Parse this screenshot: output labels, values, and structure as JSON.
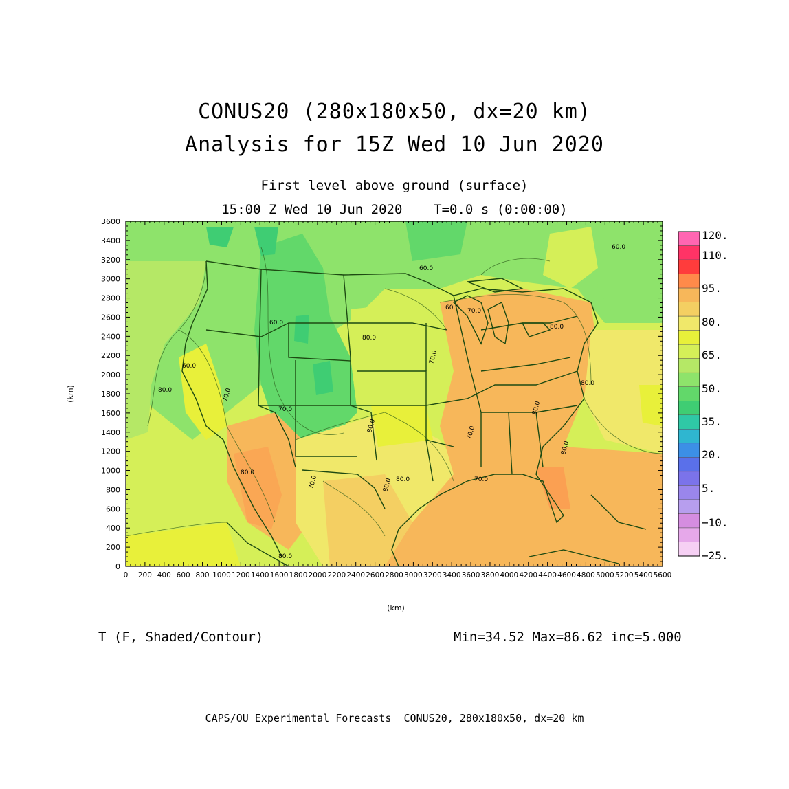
{
  "header": {
    "title_line1": "CONUS20 (280x180x50, dx=20 km)",
    "title_line2": "Analysis for 15Z Wed 10 Jun 2020",
    "subtitle_level": "First level above ground (surface)",
    "subtitle_time": "15:00 Z Wed 10 Jun 2020    T=0.0 s (0:00:00)"
  },
  "axes": {
    "x_label": "(km)",
    "y_label": "(km)",
    "x_ticks": [
      "0",
      "200",
      "400",
      "600",
      "800",
      "1000",
      "1200",
      "1400",
      "1600",
      "1800",
      "2000",
      "2200",
      "2400",
      "2600",
      "2800",
      "3000",
      "3200",
      "3400",
      "3600",
      "3800",
      "4000",
      "4200",
      "4400",
      "4600",
      "4800",
      "5000",
      "5200",
      "5400",
      "5600"
    ],
    "y_ticks": [
      "0",
      "200",
      "400",
      "600",
      "800",
      "1000",
      "1200",
      "1400",
      "1600",
      "1800",
      "2000",
      "2200",
      "2400",
      "2600",
      "2800",
      "3000",
      "3200",
      "3400",
      "3600"
    ]
  },
  "colorbar": {
    "labels": [
      "120.",
      "110.",
      "95.",
      "80.",
      "65.",
      "50.",
      "35.",
      "20.",
      "5.",
      "−10.",
      "−25."
    ],
    "colors": [
      "#ff66b2",
      "#ff3366",
      "#ff3c3c",
      "#ff8a4a",
      "#f7b75a",
      "#f4cf62",
      "#f0e86a",
      "#e8f03a",
      "#d5ef58",
      "#b5e866",
      "#8ee36b",
      "#62d86a",
      "#3fcd73",
      "#2fc8a6",
      "#2fb6d0",
      "#3c8fe6",
      "#5a70ea",
      "#7b73ea",
      "#9a86ec",
      "#b79eee",
      "#d58de0",
      "#e6a8ea",
      "#f6d0f4"
    ]
  },
  "map": {
    "contour_labels": [
      "80.0",
      "60.0",
      "70.0",
      "70.0",
      "80.0",
      "60.0",
      "80.0",
      "80.0",
      "70.0",
      "80.0",
      "80.0",
      "80.0",
      "70.0",
      "60.0",
      "80.0",
      "60.0",
      "70.0",
      "80.0",
      "60.0",
      "80.0",
      "70.0",
      "70.0",
      "80.0"
    ]
  },
  "footer_stats": {
    "field": "T (F, Shaded/Contour)",
    "stats": "Min=34.52 Max=86.62 inc=5.000"
  },
  "footer": {
    "credit": "CAPS/OU Experimental Forecasts  CONUS20, 280x180x50, dx=20 km"
  }
}
